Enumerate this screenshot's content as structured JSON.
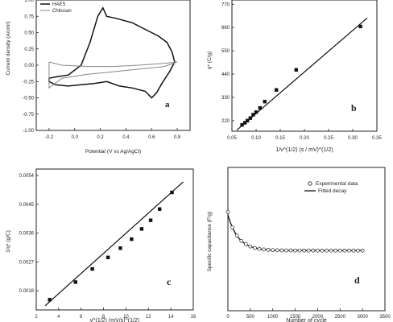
{
  "chart_data": [
    {
      "panel": "a",
      "type": "line",
      "xlabel": "Potential (V vs Ag/AgCl)",
      "ylabel": "Current density (A/cm²)",
      "xlim": [
        -0.3,
        0.9
      ],
      "ylim": [
        -1.0,
        1.0
      ],
      "xticks": [
        "-0.2",
        "0.0",
        "0.2",
        "0.4",
        "0.6",
        "0.8"
      ],
      "yticks": [
        "1.00",
        "0.75",
        "0.50",
        "0.25",
        "0.00",
        "-0.25",
        "-0.50",
        "-0.75",
        "-1.00"
      ],
      "legend": [
        "HAES",
        "Chitosan"
      ],
      "legend_position": "top-left",
      "series": [
        {
          "name": "HAES",
          "color": "#111111",
          "x": [
            -0.2,
            -0.15,
            -0.05,
            0.05,
            0.12,
            0.18,
            0.22,
            0.25,
            0.32,
            0.45,
            0.55,
            0.65,
            0.72,
            0.76,
            0.78,
            0.74,
            0.68,
            0.64,
            0.6,
            0.55,
            0.45,
            0.35,
            0.25,
            0.15,
            0.05,
            -0.05,
            -0.15,
            -0.2,
            -0.2
          ],
          "y": [
            -0.2,
            -0.18,
            -0.15,
            0.0,
            0.35,
            0.75,
            0.88,
            0.75,
            0.72,
            0.65,
            0.55,
            0.45,
            0.35,
            0.2,
            0.05,
            -0.1,
            -0.28,
            -0.42,
            -0.5,
            -0.4,
            -0.35,
            -0.32,
            -0.25,
            -0.28,
            -0.3,
            -0.32,
            -0.3,
            -0.25,
            -0.2
          ]
        },
        {
          "name": "Chitosan",
          "color": "#888888",
          "x": [
            -0.2,
            -0.1,
            0.1,
            0.3,
            0.5,
            0.7,
            0.8,
            0.7,
            0.5,
            0.3,
            0.1,
            -0.1,
            -0.2,
            -0.2
          ],
          "y": [
            0.05,
            0.0,
            -0.02,
            -0.02,
            0.0,
            0.03,
            0.05,
            -0.02,
            -0.06,
            -0.1,
            -0.14,
            -0.2,
            -0.35,
            0.05
          ]
        }
      ]
    },
    {
      "panel": "b",
      "type": "scatter",
      "xlabel": "1/ν^(1/2) (s / mV)^(1/2)",
      "ylabel": "q* (C/g)",
      "xlim": [
        0.05,
        0.35
      ],
      "ylim": [
        170,
        790
      ],
      "xticks": [
        "0.05",
        "0.10",
        "0.15",
        "0.20",
        "0.25",
        "0.30",
        "0.35"
      ],
      "yticks": [
        "220",
        "330",
        "440",
        "550",
        "660",
        "770"
      ],
      "x": [
        0.071,
        0.077,
        0.082,
        0.088,
        0.094,
        0.1,
        0.108,
        0.118,
        0.142,
        0.183,
        0.316
      ],
      "y": [
        200,
        210,
        220,
        232,
        248,
        260,
        280,
        310,
        365,
        460,
        665
      ],
      "fit": {
        "x": [
          0.06,
          0.33
        ],
        "y": [
          175,
          705
        ]
      }
    },
    {
      "panel": "c",
      "type": "scatter",
      "xlabel": "ν^(1/2) (mV/s)^(1/2)",
      "ylabel": "1/q* (g/C)",
      "xlim": [
        2,
        16
      ],
      "ylim": [
        0.0012,
        0.0056
      ],
      "xticks": [
        "2",
        "4",
        "6",
        "8",
        "10",
        "12",
        "14",
        "16"
      ],
      "yticks": [
        "0.0018",
        "0.0027",
        "0.0036",
        "0.0045",
        "0.0054"
      ],
      "x": [
        3.2,
        5.5,
        7.0,
        8.4,
        9.5,
        10.5,
        11.4,
        12.2,
        13.0,
        14.1
      ],
      "y": [
        0.00152,
        0.00207,
        0.00248,
        0.00284,
        0.00313,
        0.00341,
        0.00373,
        0.004,
        0.00435,
        0.00487
      ],
      "fit": {
        "x": [
          2.8,
          15.1
        ],
        "y": [
          0.00133,
          0.0052
        ]
      }
    },
    {
      "panel": "d",
      "type": "line",
      "xlabel": "Number of cycle",
      "ylabel": "Specific capacitance (F/g)",
      "xlim": [
        0,
        3500
      ],
      "ylim": [
        0,
        1
      ],
      "xticks": [
        "0",
        "500",
        "1000",
        "1500",
        "2000",
        "2500",
        "3000",
        "3500"
      ],
      "legend": [
        "Experimental data",
        "Fitted decay"
      ],
      "legend_position": "top-right",
      "series": [
        {
          "name": "Experimental data",
          "marker": "circle",
          "x_range": [
            0,
            3000
          ],
          "x_step": 100
        },
        {
          "name": "Fitted decay",
          "marker": "none"
        }
      ],
      "decay_model": {
        "plateau": 0.42,
        "amplitude": 0.25,
        "tau": 230
      }
    }
  ],
  "panel_labels": [
    "a",
    "b",
    "c",
    "d"
  ]
}
